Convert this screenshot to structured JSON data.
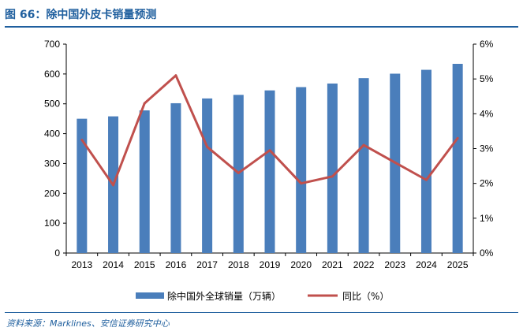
{
  "header": {
    "title": "图 66：除中国外皮卡销量预测"
  },
  "footer": {
    "source": "资料来源：Marklines、安信证券研究中心"
  },
  "colors": {
    "bar": "#4a7ebb",
    "line": "#c0504d",
    "accent": "#1f5f9e"
  },
  "chart_data": {
    "type": "bar+line",
    "title": "除中国外皮卡销量预测",
    "categories": [
      "2013",
      "2014",
      "2015",
      "2016",
      "2017",
      "2018",
      "2019",
      "2020",
      "2021",
      "2022",
      "2023",
      "2024",
      "2025"
    ],
    "series": [
      {
        "name": "除中国外全球销量（万辆）",
        "type": "bar",
        "axis": "left",
        "values": [
          450,
          458,
          478,
          502,
          518,
          530,
          545,
          556,
          568,
          586,
          601,
          614,
          634
        ]
      },
      {
        "name": "同比（%）",
        "type": "line",
        "axis": "right",
        "values": [
          3.25,
          1.95,
          4.3,
          5.1,
          3.05,
          2.3,
          2.95,
          2.0,
          2.2,
          3.1,
          2.6,
          2.1,
          3.3
        ]
      }
    ],
    "y_left": {
      "ylim": [
        0,
        700
      ],
      "ticks": [
        "0",
        "100",
        "200",
        "300",
        "400",
        "500",
        "600",
        "700"
      ],
      "tick_values": [
        0,
        100,
        200,
        300,
        400,
        500,
        600,
        700
      ]
    },
    "y_right": {
      "ylim": [
        0,
        6
      ],
      "ticks": [
        "0%",
        "1%",
        "2%",
        "3%",
        "4%",
        "5%",
        "6%"
      ],
      "tick_values": [
        0,
        1,
        2,
        3,
        4,
        5,
        6
      ]
    },
    "legend": {
      "placement": "bottom-center",
      "entries": [
        "除中国外全球销量（万辆）",
        "同比（%）"
      ]
    },
    "grid": false
  }
}
